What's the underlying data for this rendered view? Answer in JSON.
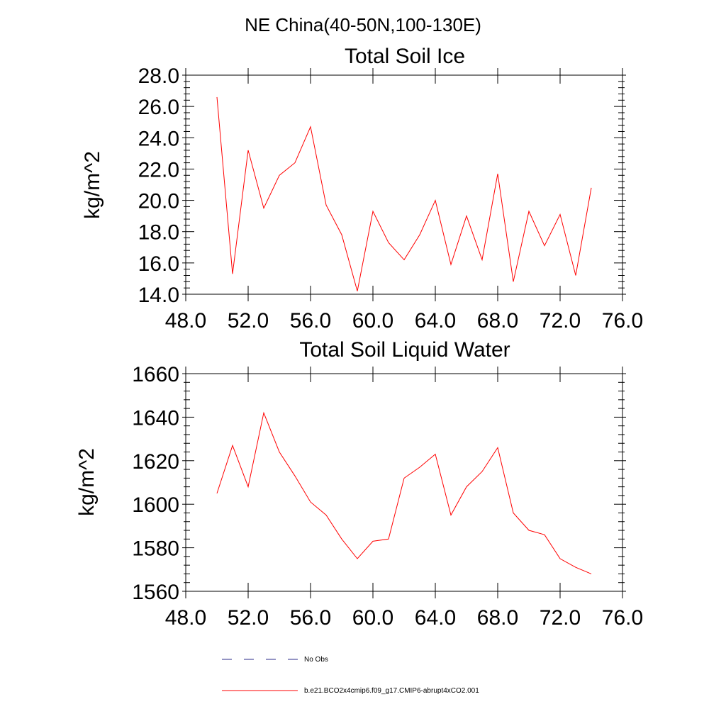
{
  "page_title": "NE China(40-50N,100-130E)",
  "chart_data": [
    {
      "type": "line",
      "title": "Total Soil Ice",
      "xlabel": "",
      "ylabel": "kg/m^2",
      "xlim": [
        48,
        76
      ],
      "ylim": [
        14,
        28
      ],
      "xticks": [
        "48.0",
        "52.0",
        "56.0",
        "60.0",
        "64.0",
        "68.0",
        "72.0",
        "76.0"
      ],
      "yticks": [
        "14.0",
        "16.0",
        "18.0",
        "20.0",
        "22.0",
        "24.0",
        "26.0",
        "28.0"
      ],
      "x": [
        50,
        51,
        52,
        53,
        54,
        55,
        56,
        57,
        58,
        59,
        60,
        61,
        62,
        63,
        64,
        65,
        66,
        67,
        68,
        69,
        70,
        71,
        72,
        73,
        74
      ],
      "series": [
        {
          "name": "b.e21.BCO2x4cmip6.f09_g17.CMIP6-abrupt4xCO2.001",
          "color": "#ff0000",
          "values": [
            26.6,
            15.3,
            23.2,
            19.5,
            21.6,
            22.4,
            24.7,
            19.7,
            17.8,
            14.2,
            19.3,
            17.3,
            16.2,
            17.8,
            20.0,
            15.9,
            19.0,
            16.2,
            21.7,
            14.8,
            19.3,
            17.1,
            19.1,
            15.2,
            20.8
          ]
        }
      ]
    },
    {
      "type": "line",
      "title": "Total Soil Liquid Water",
      "xlabel": "",
      "ylabel": "kg/m^2",
      "xlim": [
        48,
        76
      ],
      "ylim": [
        1560,
        1660
      ],
      "xticks": [
        "48.0",
        "52.0",
        "56.0",
        "60.0",
        "64.0",
        "68.0",
        "72.0",
        "76.0"
      ],
      "yticks": [
        "1560",
        "1580",
        "1600",
        "1620",
        "1640",
        "1660"
      ],
      "x": [
        50,
        51,
        52,
        53,
        54,
        55,
        56,
        57,
        58,
        59,
        60,
        61,
        62,
        63,
        64,
        65,
        66,
        67,
        68,
        69,
        70,
        71,
        72,
        73,
        74
      ],
      "series": [
        {
          "name": "b.e21.BCO2x4cmip6.f09_g17.CMIP6-abrupt4xCO2.001",
          "color": "#ff0000",
          "values": [
            1605,
            1627,
            1608,
            1642,
            1624,
            1613,
            1601,
            1595,
            1584,
            1575,
            1583,
            1584,
            1612,
            1617,
            1623,
            1595,
            1608,
            1615,
            1626,
            1596,
            1588,
            1586,
            1575,
            1571,
            1568
          ]
        }
      ]
    }
  ],
  "legend": [
    {
      "label": "No Obs",
      "color": "#2a2a8a",
      "style": "dashed"
    },
    {
      "label": "b.e21.BCO2x4cmip6.f09_g17.CMIP6-abrupt4xCO2.001",
      "color": "#ff0000",
      "style": "solid"
    }
  ]
}
